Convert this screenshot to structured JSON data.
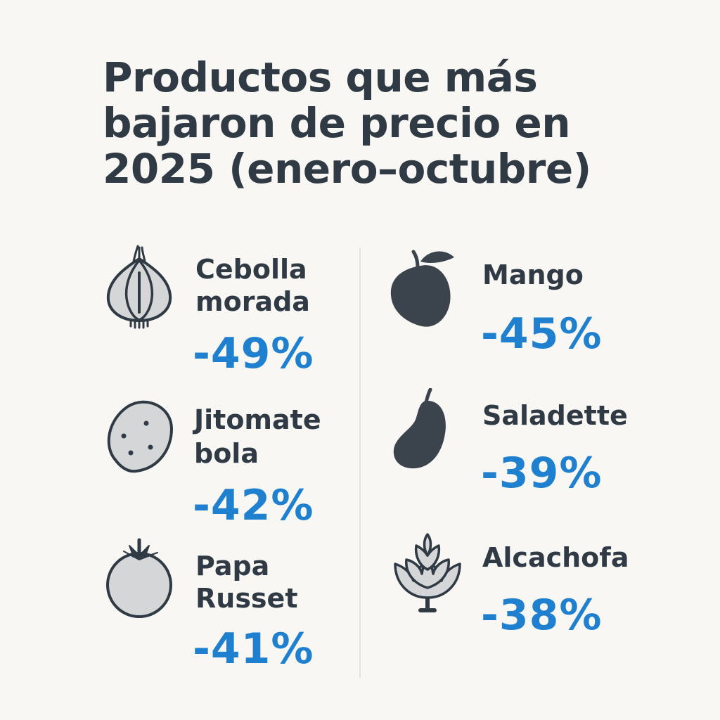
{
  "title": "Productos que más bajaron de precio en 2025 (enero–octubre)",
  "accent_color": "#1f80d0",
  "left_column": [
    {
      "name_line1": "Cebolla",
      "name_line2": "morada",
      "pct": "-49%",
      "icon": "onion-icon"
    },
    {
      "name_line1": "Jitomate",
      "name_line2": "bola",
      "pct": "-42%",
      "icon": "potato-icon"
    },
    {
      "name_line1": "Papa",
      "name_line2": "Russet",
      "pct": "-41%",
      "icon": "tomato-icon"
    }
  ],
  "right_column": [
    {
      "name_line1": "Mango",
      "pct": "-45%",
      "icon": "mango-icon"
    },
    {
      "name_line1": "Saladette",
      "pct": "-39%",
      "icon": "eggplant-icon"
    },
    {
      "name_line1": "Alcachofa",
      "pct": "-38%",
      "icon": "artichoke-icon"
    }
  ]
}
